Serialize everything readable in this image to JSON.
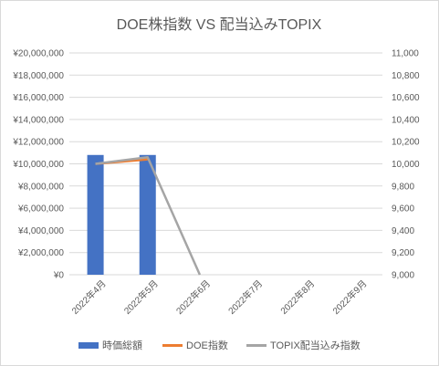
{
  "chart_data": {
    "type": "bar+line",
    "title": "DOE株指数 VS 配当込みTOPIX",
    "categories": [
      "2022年4月",
      "2022年5月",
      "2022年6月",
      "2022年7月",
      "2022年8月",
      "2022年9月"
    ],
    "bar_series": {
      "name": "時価総額",
      "axis": "left",
      "color": "#4472C4",
      "values": [
        10800000,
        10800000,
        null,
        null,
        null,
        null
      ]
    },
    "line_series": [
      {
        "name": "DOE指数",
        "axis": "right",
        "color": "#ED7D31",
        "values": [
          10000,
          10040,
          null,
          null,
          null,
          null
        ]
      },
      {
        "name": "TOPIX配当込み指数",
        "axis": "right",
        "color": "#A5A5A5",
        "values": [
          10000,
          10060,
          9000,
          null,
          null,
          null
        ]
      }
    ],
    "y_left": {
      "min": 0,
      "max": 20000000,
      "step": 2000000,
      "tick_labels": [
        "¥0",
        "¥2,000,000",
        "¥4,000,000",
        "¥6,000,000",
        "¥8,000,000",
        "¥10,000,000",
        "¥12,000,000",
        "¥14,000,000",
        "¥16,000,000",
        "¥18,000,000",
        "¥20,000,000"
      ]
    },
    "y_right": {
      "min": 9000,
      "max": 11000,
      "step": 200,
      "tick_labels": [
        "9,000",
        "9,200",
        "9,400",
        "9,600",
        "9,800",
        "10,000",
        "10,200",
        "10,400",
        "10,600",
        "10,800",
        "11,000"
      ]
    },
    "grid": true,
    "legend_position": "bottom"
  }
}
